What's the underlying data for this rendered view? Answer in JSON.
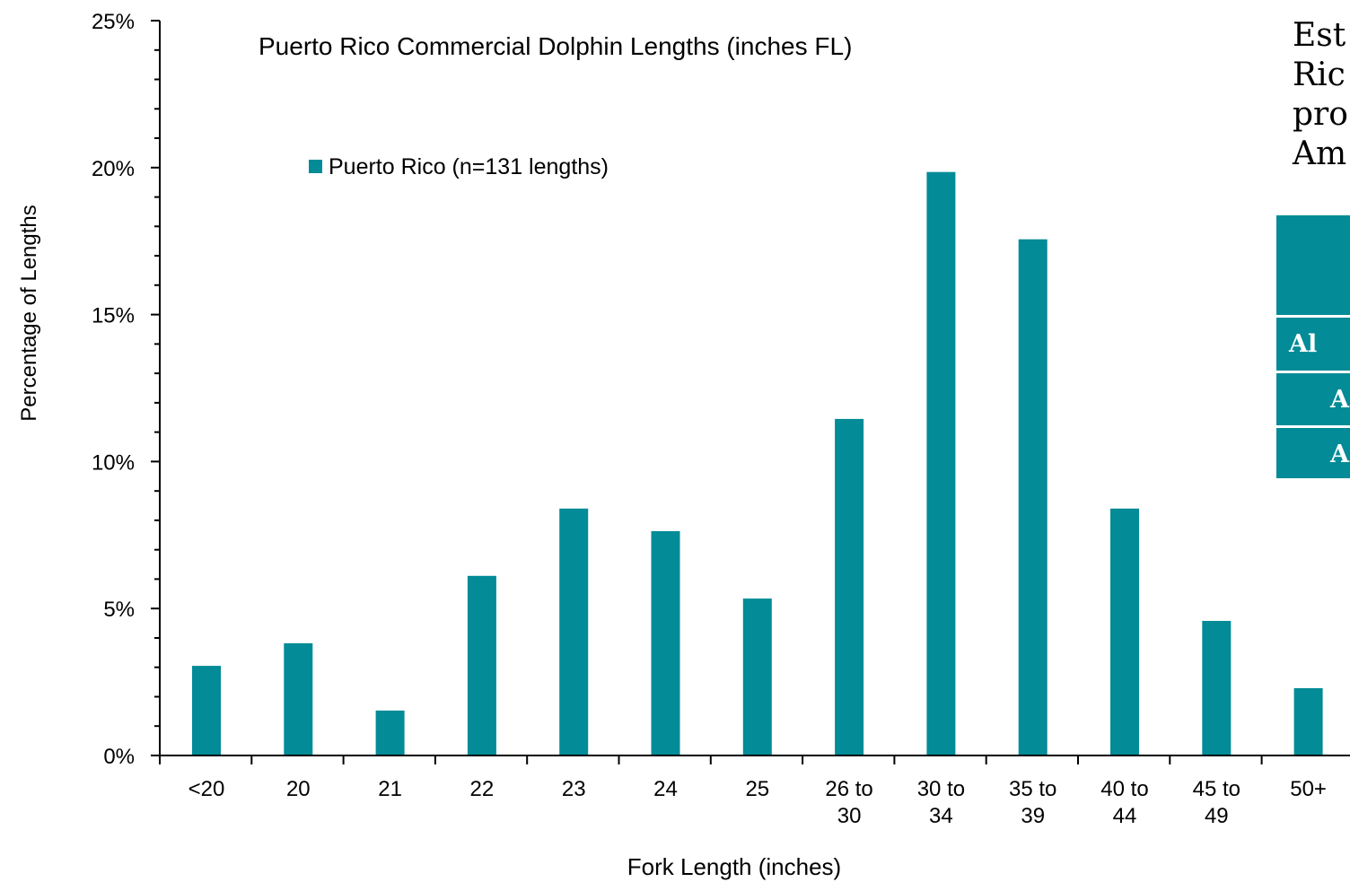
{
  "colors": {
    "bar": "#038b97",
    "axis": "#000000",
    "background": "#ffffff"
  },
  "chart_data": {
    "type": "bar",
    "title": "Puerto Rico Commercial Dolphin Lengths (inches FL)",
    "xlabel": "Fork Length (inches)",
    "ylabel": "Percentage of Lengths",
    "categories": [
      [
        "<20"
      ],
      [
        "20"
      ],
      [
        "21"
      ],
      [
        "22"
      ],
      [
        "23"
      ],
      [
        "24"
      ],
      [
        "25"
      ],
      [
        "26 to",
        "30"
      ],
      [
        "30 to",
        "34"
      ],
      [
        "35 to",
        "39"
      ],
      [
        "40 to",
        "44"
      ],
      [
        "45 to",
        "49"
      ],
      [
        "50+"
      ]
    ],
    "series": [
      {
        "name": "Puerto Rico (n=131 lengths)",
        "values": [
          3.05,
          3.82,
          1.53,
          6.11,
          8.4,
          7.63,
          5.34,
          11.45,
          19.85,
          17.56,
          8.4,
          4.58,
          2.29
        ]
      }
    ],
    "ylim": [
      0,
      25
    ],
    "yticks": [
      0,
      5,
      10,
      15,
      20,
      25
    ],
    "ytick_labels": [
      "0%",
      "5%",
      "10%",
      "15%",
      "20%",
      "25%"
    ],
    "legend": "upper-left",
    "grid": false
  },
  "side_panel": {
    "text_lines": [
      "Est",
      "Ric",
      "pro",
      "Am"
    ],
    "table_cells": [
      "Al",
      "A",
      "A"
    ]
  }
}
